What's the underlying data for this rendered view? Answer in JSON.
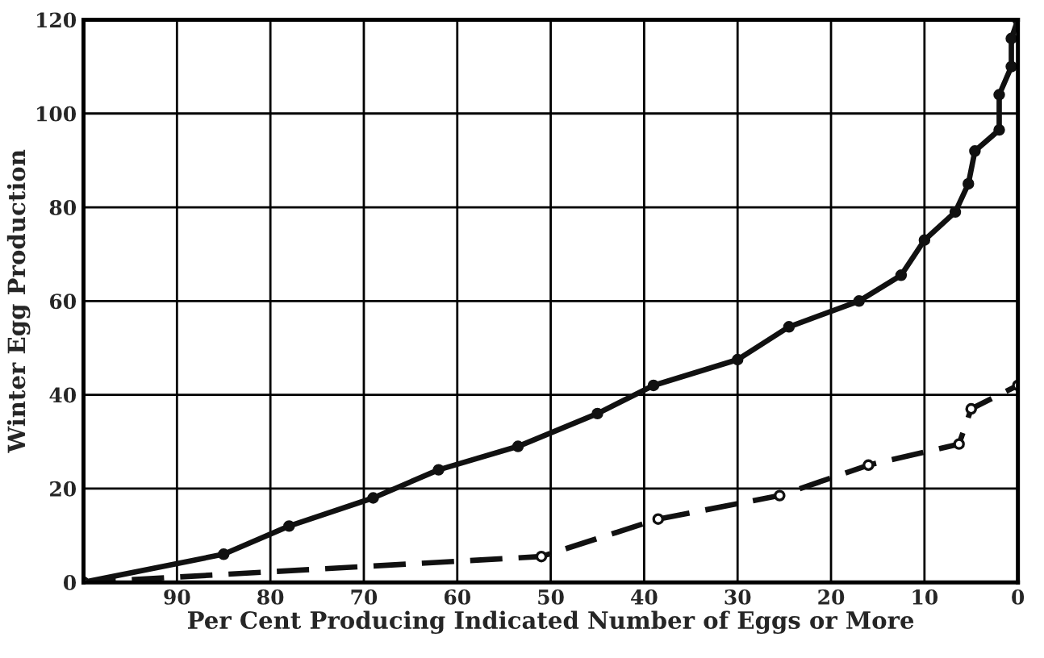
{
  "chart_data": {
    "type": "line",
    "xlabel": "Per Cent Producing Indicated Number of Eggs or More",
    "ylabel": "Winter Egg Production",
    "xlim": [
      100,
      0
    ],
    "xticks": [
      90,
      80,
      70,
      60,
      50,
      40,
      30,
      20,
      10,
      0
    ],
    "ylim": [
      0,
      120
    ],
    "yticks": [
      0,
      20,
      40,
      60,
      80,
      100,
      120
    ],
    "grid": true,
    "marker": "circle",
    "series": [
      {
        "color": "#111111",
        "line_style": "solid",
        "x": [
          100,
          85,
          78,
          69,
          62,
          53.5,
          45,
          39,
          30,
          24.5,
          17,
          12.5,
          10,
          6.7,
          5.3,
          4.6,
          2,
          2,
          0.7,
          0.7,
          0
        ],
        "values": [
          0,
          6,
          12,
          18,
          24,
          29,
          36,
          42,
          47.5,
          54.5,
          60,
          65.5,
          73,
          79,
          85,
          92,
          96.5,
          104,
          110,
          116,
          120
        ]
      },
      {
        "color": "#111111",
        "line_style": "dashed",
        "x": [
          100,
          51,
          38.5,
          25.5,
          16,
          6.3,
          5,
          0
        ],
        "values": [
          0,
          5.5,
          13.5,
          18.5,
          25,
          29.5,
          37,
          42
        ]
      }
    ]
  }
}
